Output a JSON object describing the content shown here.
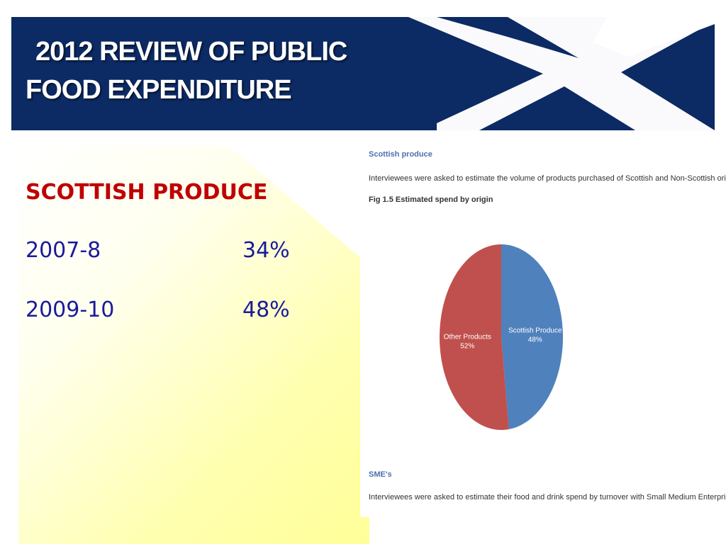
{
  "banner": {
    "title_line1": "2012 REVIEW OF PUBLIC",
    "title_line2": "FOOD EXPENDITURE",
    "colors": {
      "navy": "#0c2a63",
      "saltire": "#ffffff"
    }
  },
  "left": {
    "heading": "SCOTTISH PRODUCE",
    "rows": [
      {
        "year": "2007-8",
        "value": "34%"
      },
      {
        "year": "2009-10",
        "value": "48%"
      }
    ],
    "colors": {
      "heading": "#c00000",
      "rows": "#1a1a9c"
    }
  },
  "report": {
    "section_heading": "Scottish produce",
    "intro": "Interviewees were asked to estimate the volume of products purchased of Scottish and Non-Scottish origin.",
    "figure_caption": "Fig 1.5 Estimated spend by origin",
    "next_heading": "SME's",
    "next_text": "Interviewees were asked to estimate their food and drink spend by turnover with Small Medium Enterprises."
  },
  "chart_data": {
    "type": "pie",
    "title": "Fig 1.5 Estimated spend by origin",
    "slices": [
      {
        "label": "Scottish Produce",
        "value": 48,
        "display": "48%",
        "color": "#4f81bd"
      },
      {
        "label": "Other Products",
        "value": 52,
        "display": "52%",
        "color": "#c0504d"
      }
    ],
    "start_angle_deg": 0,
    "direction": "clockwise",
    "legend": "none"
  }
}
